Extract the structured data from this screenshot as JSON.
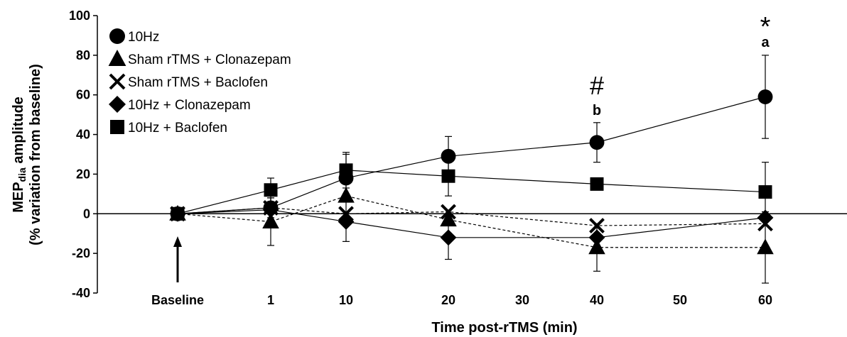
{
  "chart_data": {
    "type": "line",
    "title": "",
    "xlabel": "Time post-rTMS (min)",
    "ylabel_main": "MEP",
    "ylabel_sub": "dia",
    "ylabel_rest": " amplitude",
    "ylabel_line2": "(% variation from baseline)",
    "categories": [
      "Baseline",
      "1",
      "10",
      "20",
      "30",
      "40",
      "50",
      "60"
    ],
    "yticks": [
      100,
      80,
      60,
      40,
      20,
      0,
      -20,
      -40
    ],
    "ylim": [
      -40,
      100
    ],
    "legend_position": "top-left",
    "series": [
      {
        "name": "10Hz",
        "marker": "circle",
        "line": "solid",
        "points": [
          {
            "x": "Baseline",
            "y": 0
          },
          {
            "x": "1",
            "y": 3
          },
          {
            "x": "10",
            "y": 18
          },
          {
            "x": "20",
            "y": 29
          },
          {
            "x": "40",
            "y": 36
          },
          {
            "x": "60",
            "y": 59
          }
        ],
        "errors": [
          0,
          5,
          12,
          10,
          10,
          21
        ]
      },
      {
        "name": "Sham rTMS + Clonazepam",
        "marker": "triangle",
        "line": "dashed",
        "points": [
          {
            "x": "Baseline",
            "y": 0
          },
          {
            "x": "1",
            "y": -4
          },
          {
            "x": "10",
            "y": 9
          },
          {
            "x": "20",
            "y": -3
          },
          {
            "x": "40",
            "y": -17
          },
          {
            "x": "60",
            "y": -17
          }
        ],
        "errors": [
          0,
          12,
          0,
          0,
          12,
          18
        ]
      },
      {
        "name": "Sham rTMS + Baclofen",
        "marker": "x",
        "line": "dashed",
        "points": [
          {
            "x": "Baseline",
            "y": 0
          },
          {
            "x": "1",
            "y": 3
          },
          {
            "x": "10",
            "y": 0
          },
          {
            "x": "20",
            "y": 1
          },
          {
            "x": "40",
            "y": -6
          },
          {
            "x": "60",
            "y": -5
          }
        ],
        "errors": [
          0,
          0,
          0,
          0,
          0,
          0
        ]
      },
      {
        "name": "10Hz + Clonazepam",
        "marker": "diamond",
        "line": "solid",
        "points": [
          {
            "x": "Baseline",
            "y": 0
          },
          {
            "x": "1",
            "y": 2
          },
          {
            "x": "10",
            "y": -4
          },
          {
            "x": "20",
            "y": -12
          },
          {
            "x": "40",
            "y": -12
          },
          {
            "x": "60",
            "y": -2
          }
        ],
        "errors": [
          0,
          0,
          10,
          11,
          0,
          0
        ]
      },
      {
        "name": "10Hz + Baclofen",
        "marker": "square",
        "line": "solid",
        "points": [
          {
            "x": "Baseline",
            "y": 0
          },
          {
            "x": "1",
            "y": 12
          },
          {
            "x": "10",
            "y": 22
          },
          {
            "x": "20",
            "y": 19
          },
          {
            "x": "40",
            "y": 15
          },
          {
            "x": "60",
            "y": 11
          }
        ],
        "errors": [
          0,
          6,
          9,
          10,
          0,
          15
        ]
      }
    ],
    "annotations": [
      {
        "text": "#",
        "x": "40",
        "kind": "hash"
      },
      {
        "text": "b",
        "x": "40",
        "kind": "letter"
      },
      {
        "text": "*",
        "x": "60",
        "kind": "star"
      },
      {
        "text": "a",
        "x": "60",
        "kind": "letter"
      }
    ],
    "arrow_at": "Baseline"
  }
}
